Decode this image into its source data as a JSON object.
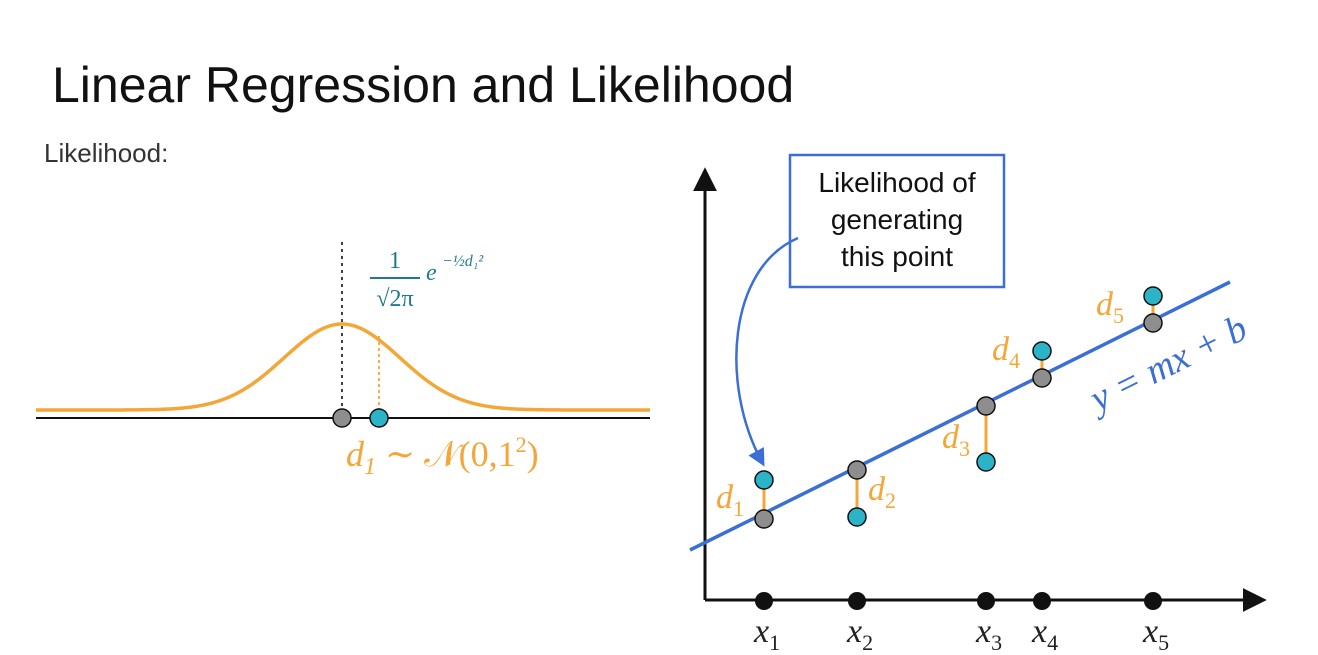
{
  "title": "Linear Regression and Likelihood",
  "subtitle": "Likelihood:",
  "colors": {
    "orange": "#F4A637",
    "blue": "#3B6FD6",
    "teal": "#2BB3C8",
    "gray_point": "#8E8E8E",
    "black": "#111111",
    "formula_teal": "#1F7A8C"
  },
  "gaussian_panel": {
    "formula": {
      "numerator": "1",
      "denominator": "√2π",
      "base": "e",
      "exponent": "−½d₁²"
    },
    "distribution_label": {
      "var": "d",
      "sub": "1",
      "rest": " ∼ 𝒩(0,1",
      "sup": "2",
      "close": ")"
    }
  },
  "regression_panel": {
    "callout_lines": [
      "Likelihood of",
      "generating",
      "this point"
    ],
    "line_label": "y = mx + b",
    "x_labels": [
      {
        "var": "x",
        "sub": "1"
      },
      {
        "var": "x",
        "sub": "2"
      },
      {
        "var": "x",
        "sub": "3"
      },
      {
        "var": "x",
        "sub": "4"
      },
      {
        "var": "x",
        "sub": "5"
      }
    ],
    "d_labels": [
      {
        "var": "d",
        "sub": "1"
      },
      {
        "var": "d",
        "sub": "2"
      },
      {
        "var": "d",
        "sub": "3"
      },
      {
        "var": "d",
        "sub": "4"
      },
      {
        "var": "d",
        "sub": "5"
      }
    ]
  }
}
